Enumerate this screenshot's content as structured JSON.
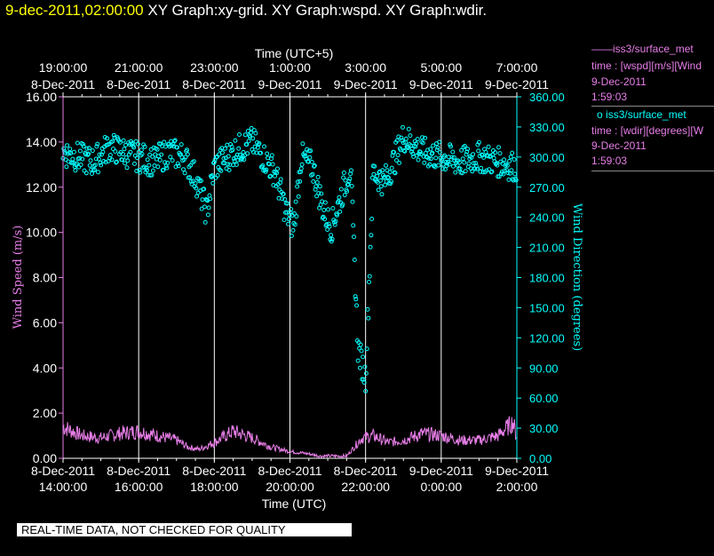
{
  "header": {
    "timestamp": "9-dec-2011,02:00:00",
    "graph_titles": "XY Graph:xy-grid.  XY Graph:wspd.  XY Graph:wdir."
  },
  "legend": {
    "wspd": {
      "marker": "——",
      "source": "iss3/surface_met",
      "desc": "time : [wspd][m/s][Wind",
      "date": "9-Dec-2011",
      "time": "1:59:03"
    },
    "wdir": {
      "marker": "o",
      "source": "iss3/surface_met",
      "desc": "time : [wdir][degrees][W",
      "date": "9-Dec-2011",
      "time": "1:59:03"
    }
  },
  "banner": "REAL-TIME DATA, NOT CHECKED FOR QUALITY",
  "colors": {
    "background": "#000000",
    "wspd": "#e87ee8",
    "wdir": "#00ffff",
    "grid": "#ffffff",
    "header_time": "#ffff00"
  },
  "chart_data": {
    "type": "line",
    "grid": true,
    "top_axis": {
      "label": "Time (UTC+5)",
      "ticks": [
        {
          "time": "19:00:00",
          "date": "8-Dec-2011"
        },
        {
          "time": "21:00:00",
          "date": "8-Dec-2011"
        },
        {
          "time": "23:00:00",
          "date": "8-Dec-2011"
        },
        {
          "time": "1:00:00",
          "date": "9-Dec-2011"
        },
        {
          "time": "3:00:00",
          "date": "9-Dec-2011"
        },
        {
          "time": "5:00:00",
          "date": "9-Dec-2011"
        },
        {
          "time": "7:00:00",
          "date": "9-Dec-2011"
        }
      ]
    },
    "bottom_axis": {
      "label": "Time (UTC)",
      "range": [
        "8-Dec-2011 14:00:00",
        "9-Dec-2011 02:00:00"
      ],
      "ticks": [
        {
          "date": "8-Dec-2011",
          "time": "14:00:00"
        },
        {
          "date": "8-Dec-2011",
          "time": "16:00:00"
        },
        {
          "date": "8-Dec-2011",
          "time": "18:00:00"
        },
        {
          "date": "8-Dec-2011",
          "time": "20:00:00"
        },
        {
          "date": "8-Dec-2011",
          "time": "22:00:00"
        },
        {
          "date": "9-Dec-2011",
          "time": "0:00:00"
        },
        {
          "date": "9-Dec-2011",
          "time": "2:00:00"
        }
      ]
    },
    "left_axis": {
      "label": "Wind Speed (m/s)",
      "range": [
        0,
        16
      ],
      "ticks": [
        "0.00",
        "2.00",
        "4.00",
        "6.00",
        "8.00",
        "10.00",
        "12.00",
        "14.00",
        "16.00"
      ]
    },
    "right_axis": {
      "label": "Wind Direction (degrees)",
      "range": [
        0,
        360
      ],
      "ticks": [
        "0.00",
        "30.00",
        "60.00",
        "90.00",
        "120.00",
        "150.00",
        "180.00",
        "210.00",
        "240.00",
        "270.00",
        "300.00",
        "330.00",
        "360.00"
      ]
    },
    "series": [
      {
        "name": "iss3/surface_met",
        "quantity": "wspd",
        "axis": "left",
        "style": "line",
        "x_hours_utc_from_14": [
          0.0,
          0.5,
          1.0,
          1.5,
          2.0,
          2.5,
          3.0,
          3.3,
          3.6,
          4.0,
          4.5,
          5.0,
          5.5,
          6.0,
          6.5,
          6.8,
          7.0,
          7.5,
          7.9,
          8.2,
          8.6,
          9.0,
          9.5,
          10.0,
          10.5,
          11.0,
          11.5,
          11.9,
          12.0
        ],
        "y": [
          1.4,
          1.0,
          0.9,
          1.1,
          1.2,
          1.0,
          0.8,
          0.5,
          0.4,
          0.7,
          1.2,
          0.9,
          0.5,
          0.3,
          0.2,
          0.1,
          0.1,
          0.1,
          0.9,
          1.0,
          0.7,
          0.8,
          1.1,
          1.0,
          0.8,
          0.8,
          1.0,
          1.6,
          0.9
        ]
      },
      {
        "name": "iss3/surface_met",
        "quantity": "wdir",
        "axis": "right",
        "style": "markers",
        "x_hours_utc_from_14": [
          0.0,
          0.4,
          0.8,
          1.2,
          1.6,
          2.0,
          2.4,
          2.8,
          3.2,
          3.5,
          3.8,
          4.0,
          4.5,
          5.0,
          5.3,
          5.6,
          5.9,
          6.1,
          6.3,
          6.6,
          6.9,
          7.1,
          7.3,
          7.6,
          7.8,
          8.0,
          8.2,
          8.5,
          8.8,
          9.0,
          9.5,
          10.0,
          10.5,
          11.0,
          11.5,
          12.0
        ],
        "y": [
          305,
          300,
          295,
          310,
          305,
          300,
          295,
          305,
          300,
          280,
          245,
          290,
          305,
          315,
          300,
          285,
          245,
          230,
          300,
          290,
          245,
          230,
          255,
          290,
          110,
          80,
          285,
          275,
          300,
          320,
          305,
          300,
          295,
          300,
          295,
          290
        ]
      }
    ]
  }
}
